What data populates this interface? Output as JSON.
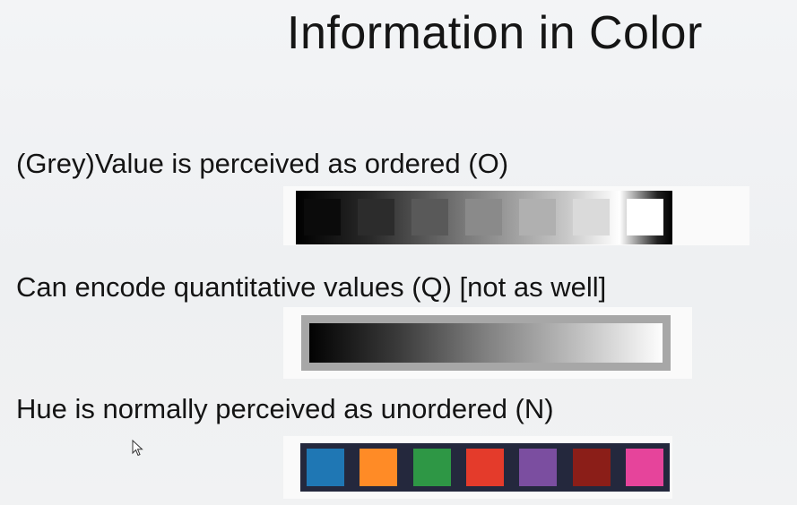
{
  "slide": {
    "title": "Information in Color",
    "line1": "(Grey)Value is perceived as ordered (O)",
    "line2": "Can encode quantitative values (Q) [not as well]",
    "line3": "Hue is normally perceived as unordered (N)"
  },
  "grey_swatches": [
    "#0b0b0b",
    "#2c2c2c",
    "#595959",
    "#8a8a8a",
    "#b0b0b0",
    "#dadada",
    "#ffffff"
  ],
  "hue_swatches": [
    "#1f77b4",
    "#ff8b26",
    "#2e9745",
    "#e43b2b",
    "#7b4ea0",
    "#8b1e18",
    "#e6449b"
  ]
}
